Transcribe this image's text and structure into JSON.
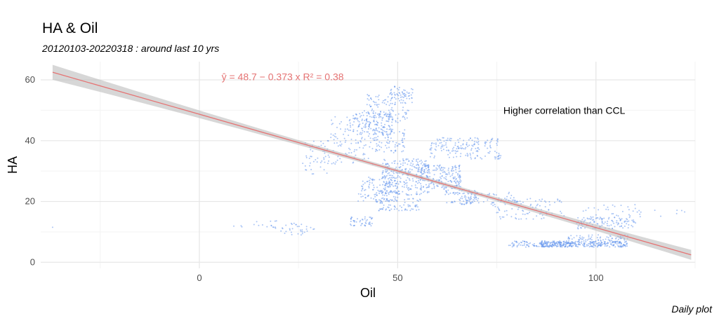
{
  "title": "HA & Oil",
  "subtitle": "20120103-20220318 : around last 10 yrs",
  "caption": "Daily plot",
  "chart_data": {
    "type": "scatter",
    "title": "HA & Oil",
    "subtitle": "20120103-20220318 : around last 10 yrs",
    "xlabel": "Oil",
    "ylabel": "HA",
    "xlim": [
      -40,
      125
    ],
    "ylim": [
      -2,
      66
    ],
    "xticks": [
      0,
      50,
      100
    ],
    "yticks": [
      0,
      20,
      40,
      60
    ],
    "grid": true,
    "point_color": "#6495ED",
    "fit_color": "#E57373",
    "band_color": "#BDBDBD",
    "regression": {
      "intercept": 48.7,
      "slope": -0.373,
      "r2": 0.38,
      "x_range": [
        -37,
        124
      ],
      "equation_label": "ŷ = 48.7 − 0.373 x   R² = 0.38",
      "equation_position": [
        21,
        61
      ]
    },
    "annotation": {
      "text": "Higher correlation than CCL",
      "x": 92,
      "y": 50
    },
    "clusters": [
      {
        "x": [
          -37,
          -37
        ],
        "y": [
          11.5,
          11.5
        ],
        "n": 1
      },
      {
        "x": [
          8,
          12
        ],
        "y": [
          11,
          12
        ],
        "n": 3
      },
      {
        "x": [
          13,
          20
        ],
        "y": [
          11,
          14
        ],
        "n": 12
      },
      {
        "x": [
          19,
          29
        ],
        "y": [
          9,
          13
        ],
        "n": 35
      },
      {
        "x": [
          26,
          34
        ],
        "y": [
          29,
          40
        ],
        "n": 50
      },
      {
        "x": [
          32,
          44
        ],
        "y": [
          32,
          40
        ],
        "n": 55
      },
      {
        "x": [
          33,
          45
        ],
        "y": [
          40,
          48
        ],
        "n": 65
      },
      {
        "x": [
          38,
          49
        ],
        "y": [
          42,
          50
        ],
        "n": 130
      },
      {
        "x": [
          42,
          53
        ],
        "y": [
          46,
          56
        ],
        "n": 110
      },
      {
        "x": [
          48,
          54
        ],
        "y": [
          52,
          58
        ],
        "n": 50
      },
      {
        "x": [
          44,
          52
        ],
        "y": [
          36,
          44
        ],
        "n": 80
      },
      {
        "x": [
          38,
          44
        ],
        "y": [
          12,
          15
        ],
        "n": 45
      },
      {
        "x": [
          40,
          50
        ],
        "y": [
          20,
          28
        ],
        "n": 120
      },
      {
        "x": [
          44,
          56
        ],
        "y": [
          17,
          21
        ],
        "n": 80
      },
      {
        "x": [
          46,
          58
        ],
        "y": [
          22,
          34
        ],
        "n": 260
      },
      {
        "x": [
          55,
          66
        ],
        "y": [
          24,
          32
        ],
        "n": 200
      },
      {
        "x": [
          58,
          76
        ],
        "y": [
          34,
          41
        ],
        "n": 170
      },
      {
        "x": [
          62,
          70
        ],
        "y": [
          19,
          24
        ],
        "n": 60
      },
      {
        "x": [
          66,
          80
        ],
        "y": [
          19,
          23
        ],
        "n": 70
      },
      {
        "x": [
          74,
          92
        ],
        "y": [
          14,
          21
        ],
        "n": 90
      },
      {
        "x": [
          78,
          94
        ],
        "y": [
          5,
          7
        ],
        "n": 120
      },
      {
        "x": [
          86,
          108
        ],
        "y": [
          5,
          6.8
        ],
        "n": 260
      },
      {
        "x": [
          93,
          108
        ],
        "y": [
          6.5,
          9
        ],
        "n": 90
      },
      {
        "x": [
          95,
          110
        ],
        "y": [
          11,
          15
        ],
        "n": 120
      },
      {
        "x": [
          96,
          112
        ],
        "y": [
          15,
          19
        ],
        "n": 30
      },
      {
        "x": [
          112,
          124
        ],
        "y": [
          15,
          18
        ],
        "n": 6
      }
    ]
  }
}
